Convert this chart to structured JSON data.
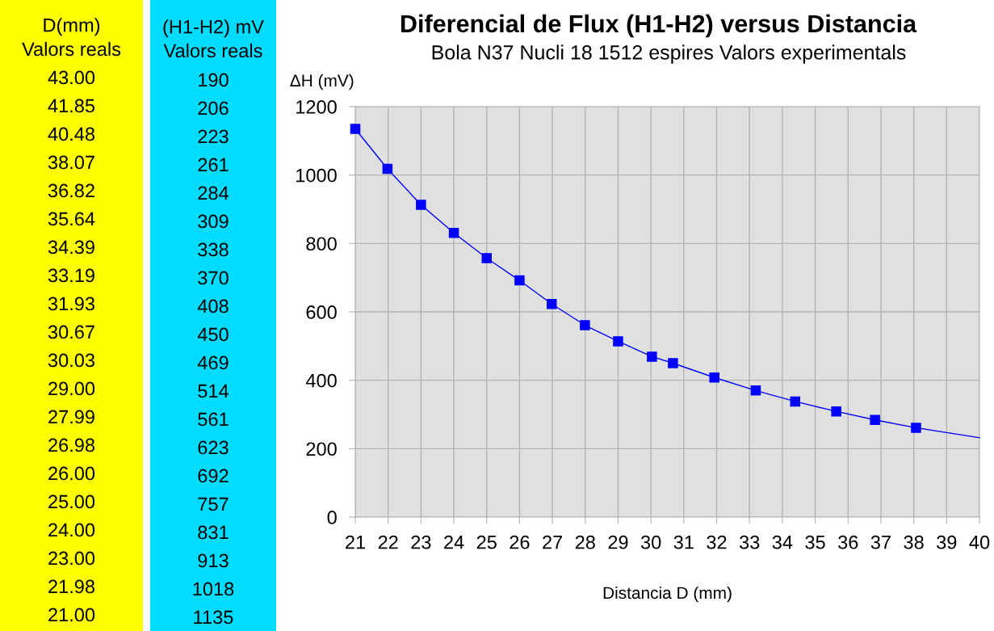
{
  "chart_data": [
    {
      "type": "other",
      "colors": [
        "#ffff00",
        "#00dcff"
      ],
      "annotations": [
        "D(mm)\nValors reals",
        "43.00",
        "41.85",
        "40.48",
        "38.07",
        "36.82",
        "35.64",
        "34.39",
        "33.19",
        "31.93",
        "30.67",
        "30.03",
        "29.00",
        "27.99",
        "26.98",
        "26.00",
        "25.00",
        "24.00",
        "23.00",
        "21.98",
        "21.00",
        "(H1-H2) mV\nValors reals",
        "190",
        "206",
        "223",
        "261",
        "284",
        "309",
        "338",
        "370",
        "408",
        "450",
        "469",
        "514",
        "561",
        "623",
        "692",
        "757",
        "831",
        "913",
        "1018",
        "1135"
      ]
    },
    {
      "type": "line",
      "title": "Diferencial de Flux (H1-H2) versus Distancia",
      "subtitle": "Bola N37 Nucli 18 1512 espires Valors experimentals",
      "xlabel": "Distancia D (mm)",
      "ylabel": "ΔH (mV)",
      "xlim": [
        21,
        40
      ],
      "xticks": [
        21,
        22,
        23,
        24,
        25,
        26,
        27,
        28,
        29,
        30,
        31,
        32,
        33,
        34,
        35,
        36,
        37,
        38,
        39,
        40
      ],
      "ylim": [
        0,
        1200
      ],
      "yticks": [
        0,
        200,
        400,
        600,
        800,
        1000,
        1200
      ],
      "grid": true,
      "series": [
        {
          "color": "#0000ff",
          "marker": "square",
          "x": [
            21,
            21.98,
            23,
            24,
            25,
            26,
            26.98,
            27.99,
            29,
            30.03,
            30.67,
            31.93,
            33.19,
            34.39,
            35.64,
            36.82,
            38.07
          ],
          "values": [
            1135,
            1018,
            913,
            831,
            757,
            692,
            623,
            561,
            514,
            469,
            450,
            408,
            370,
            338,
            309,
            284,
            261
          ]
        },
        {
          "color": "#0000ff",
          "marker": "none",
          "x": [
            38.07,
            40
          ],
          "values": [
            261,
            232
          ]
        }
      ]
    }
  ]
}
